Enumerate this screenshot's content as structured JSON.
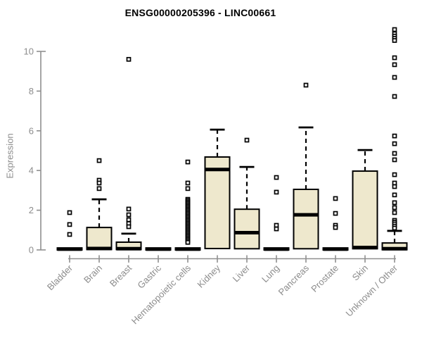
{
  "page": {
    "title": "ENSG00000205396 - LINC00661"
  },
  "chart_data": {
    "type": "boxplot",
    "title": "ENSG00000205396 - LINC00661",
    "xlabel": "",
    "ylabel": "Expression",
    "ylim": [
      0,
      11.3
    ],
    "yticks": [
      0,
      2,
      4,
      6,
      8,
      10
    ],
    "grid": false,
    "legend": "none",
    "categories": [
      "Bladder",
      "Brain",
      "Breast",
      "Gastric",
      "Hematopoietic cells",
      "Kidney",
      "Liver",
      "Lung",
      "Pancreas",
      "Prostate",
      "Skin",
      "Unknown / Other"
    ],
    "series": [
      {
        "label": "Bladder",
        "q1": 0,
        "median": 0.04,
        "q3": 0.1,
        "whisker_low": 0,
        "whisker_high": 0.1,
        "outliers": [
          1.88,
          1.28,
          0.78
        ]
      },
      {
        "label": "Brain",
        "q1": 0.02,
        "median": 0.07,
        "q3": 1.13,
        "whisker_low": 0,
        "whisker_high": 2.55,
        "outliers": [
          4.5,
          3.51,
          3.37,
          3.09
        ]
      },
      {
        "label": "Breast",
        "q1": 0.02,
        "median": 0.06,
        "q3": 0.39,
        "whisker_low": 0,
        "whisker_high": 0.82,
        "outliers": [
          9.6,
          2.06,
          1.77,
          1.52,
          1.33,
          1.17
        ]
      },
      {
        "label": "Gastric",
        "q1": 0,
        "median": 0.04,
        "q3": 0.1,
        "whisker_low": 0,
        "whisker_high": 0.1,
        "outliers": []
      },
      {
        "label": "Hematopoietic cells",
        "q1": 0,
        "median": 0.04,
        "q3": 0.1,
        "whisker_low": 0,
        "whisker_high": 0.1,
        "outliers": [
          4.43,
          3.37,
          3.09,
          2.55,
          2.48,
          2.41,
          2.34,
          2.27,
          2.2,
          2.13,
          2.06,
          1.99,
          1.92,
          1.85,
          1.78,
          1.71,
          1.64,
          1.57,
          1.5,
          1.43,
          1.36,
          1.29,
          1.22,
          1.15,
          1.08,
          1.01,
          0.94,
          0.87,
          0.8,
          0.73,
          0.66,
          0.59,
          0.52,
          0.45,
          0.38
        ]
      },
      {
        "label": "Kidney",
        "q1": 0.07,
        "median": 4.05,
        "q3": 4.68,
        "whisker_low": 0,
        "whisker_high": 6.06,
        "outliers": []
      },
      {
        "label": "Liver",
        "q1": 0.06,
        "median": 0.87,
        "q3": 2.05,
        "whisker_low": 0,
        "whisker_high": 4.18,
        "outliers": [
          5.53
        ]
      },
      {
        "label": "Lung",
        "q1": 0,
        "median": 0.04,
        "q3": 0.1,
        "whisker_low": 0,
        "whisker_high": 0.1,
        "outliers": [
          3.65,
          2.91,
          1.24,
          1.06
        ]
      },
      {
        "label": "Pancreas",
        "q1": 0.06,
        "median": 1.77,
        "q3": 3.05,
        "whisker_low": 0,
        "whisker_high": 6.17,
        "outliers": [
          8.3
        ]
      },
      {
        "label": "Prostate",
        "q1": 0,
        "median": 0.04,
        "q3": 0.1,
        "whisker_low": 0,
        "whisker_high": 0.1,
        "outliers": [
          2.59,
          1.84,
          1.24,
          1.13
        ]
      },
      {
        "label": "Skin",
        "q1": 0.06,
        "median": 0.12,
        "q3": 3.97,
        "whisker_low": 0,
        "whisker_high": 5.03,
        "outliers": []
      },
      {
        "label": "Unknown / Other",
        "q1": 0.01,
        "median": 0.06,
        "q3": 0.35,
        "whisker_low": 0,
        "whisker_high": 0.96,
        "outliers": [
          11.1,
          10.89,
          10.77,
          10.66,
          10.55,
          9.68,
          9.33,
          8.69,
          7.73,
          5.74,
          5.35,
          4.86,
          4.54,
          3.79,
          3.37,
          3.19,
          2.77,
          2.38,
          2.13,
          1.88,
          1.49,
          1.4,
          1.31,
          1.2,
          1.1
        ]
      }
    ],
    "colors": {
      "box_fill": "#EEE8CD",
      "box_border": "#000000",
      "median": "#000000",
      "whisker": "#000000",
      "outlier": "#000000",
      "axis": "#8f8f8f",
      "tick_label": "#8c8c8c",
      "title": "#000000",
      "background": "#ffffff"
    }
  }
}
